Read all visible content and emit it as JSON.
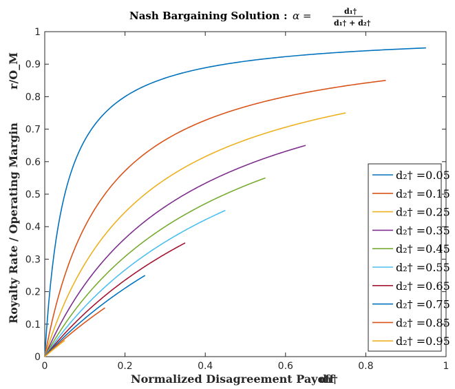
{
  "chart_data": {
    "type": "line",
    "title": "Nash Bargaining Solution",
    "title_formula": {
      "separator": ":",
      "lhs": "α =",
      "numerator": "d₁†",
      "denominator": "d₁† + d₂†"
    },
    "xlabel": "Normalized Disagreement Payoff",
    "xlabel_symbol": "d₁†",
    "ylabel": "Royalty Rate / Operating Margin",
    "ylabel_symbol": "r/O_M",
    "xlim": [
      0,
      1
    ],
    "ylim": [
      0,
      1
    ],
    "xticks": [
      "0",
      "0.2",
      "0.4",
      "0.6",
      "0.8",
      "1"
    ],
    "yticks": [
      "0",
      "0.1",
      "0.2",
      "0.3",
      "0.4",
      "0.5",
      "0.6",
      "0.7",
      "0.8",
      "0.9",
      "1"
    ],
    "grid": false,
    "box": true,
    "legend_position": "lower-right",
    "formula": "y = x / (x + d2), x from 0 to 1 - d2",
    "series": [
      {
        "name": "d₂† =0.05",
        "d2": 0.05,
        "x_max": 0.95,
        "y_end": 0.95,
        "color": "#0072BD"
      },
      {
        "name": "d₂† =0.15",
        "d2": 0.15,
        "x_max": 0.85,
        "y_end": 0.85,
        "color": "#D95319"
      },
      {
        "name": "d₂† =0.25",
        "d2": 0.25,
        "x_max": 0.75,
        "y_end": 0.75,
        "color": "#EDB120"
      },
      {
        "name": "d₂† =0.35",
        "d2": 0.35,
        "x_max": 0.65,
        "y_end": 0.65,
        "color": "#7E2F8E"
      },
      {
        "name": "d₂† =0.45",
        "d2": 0.45,
        "x_max": 0.55,
        "y_end": 0.55,
        "color": "#77AC30"
      },
      {
        "name": "d₂† =0.55",
        "d2": 0.55,
        "x_max": 0.45,
        "y_end": 0.45,
        "color": "#4DBEEE"
      },
      {
        "name": "d₂† =0.65",
        "d2": 0.65,
        "x_max": 0.35,
        "y_end": 0.35,
        "color": "#A2142F"
      },
      {
        "name": "d₂† =0.75",
        "d2": 0.75,
        "x_max": 0.25,
        "y_end": 0.25,
        "color": "#0072BD"
      },
      {
        "name": "d₂† =0.85",
        "d2": 0.85,
        "x_max": 0.15,
        "y_end": 0.15,
        "color": "#D95319"
      },
      {
        "name": "d₂† =0.95",
        "d2": 0.95,
        "x_max": 0.05,
        "y_end": 0.05,
        "color": "#EDB120"
      }
    ]
  }
}
